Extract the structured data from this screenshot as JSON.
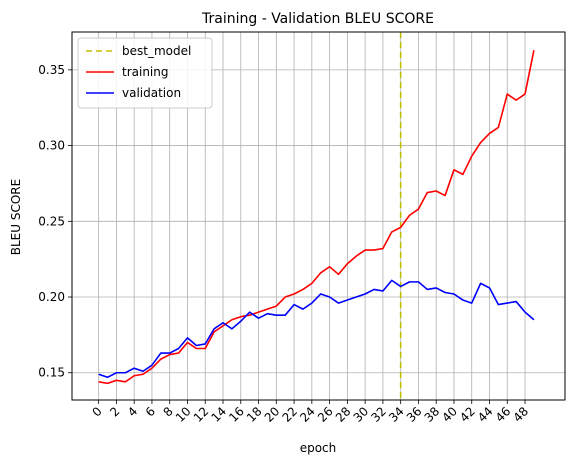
{
  "chart_data": {
    "type": "line",
    "title": "Training - Validation BLEU SCORE",
    "xlabel": "epoch",
    "ylabel": "BLEU SCORE",
    "xlim": [
      -3.0,
      52.5
    ],
    "ylim": [
      0.132,
      0.375
    ],
    "xticks": [
      0,
      2,
      4,
      6,
      8,
      10,
      12,
      14,
      16,
      18,
      20,
      22,
      24,
      26,
      28,
      30,
      32,
      34,
      36,
      38,
      40,
      42,
      44,
      46,
      48
    ],
    "yticks": [
      0.15,
      0.2,
      0.25,
      0.3,
      0.35
    ],
    "ytick_labels": [
      "0.15",
      "0.20",
      "0.25",
      "0.30",
      "0.35"
    ],
    "grid": true,
    "legend_position": "top-left",
    "best_model_epoch": 34,
    "series": [
      {
        "name": "best_model",
        "color": "#bfbf00",
        "style": "dashed"
      },
      {
        "name": "training",
        "color": "#ff0000",
        "values": [
          0.144,
          0.143,
          0.145,
          0.144,
          0.148,
          0.149,
          0.153,
          0.159,
          0.162,
          0.163,
          0.17,
          0.166,
          0.166,
          0.177,
          0.181,
          0.185,
          0.187,
          0.188,
          0.19,
          0.192,
          0.194,
          0.2,
          0.202,
          0.205,
          0.209,
          0.216,
          0.22,
          0.215,
          0.222,
          0.227,
          0.231,
          0.231,
          0.232,
          0.243,
          0.246,
          0.254,
          0.258,
          0.269,
          0.27,
          0.267,
          0.284,
          0.281,
          0.293,
          0.302,
          0.308,
          0.312,
          0.334,
          0.33,
          0.334,
          0.363
        ]
      },
      {
        "name": "validation",
        "color": "#0000ff",
        "values": [
          0.149,
          0.147,
          0.15,
          0.15,
          0.153,
          0.151,
          0.155,
          0.163,
          0.163,
          0.166,
          0.173,
          0.168,
          0.169,
          0.179,
          0.183,
          0.179,
          0.184,
          0.19,
          0.186,
          0.189,
          0.188,
          0.188,
          0.195,
          0.192,
          0.196,
          0.202,
          0.2,
          0.196,
          0.198,
          0.2,
          0.202,
          0.205,
          0.204,
          0.211,
          0.207,
          0.21,
          0.21,
          0.205,
          0.206,
          0.203,
          0.202,
          0.198,
          0.196,
          0.209,
          0.206,
          0.195,
          0.196,
          0.197,
          0.19,
          0.185
        ]
      }
    ]
  }
}
